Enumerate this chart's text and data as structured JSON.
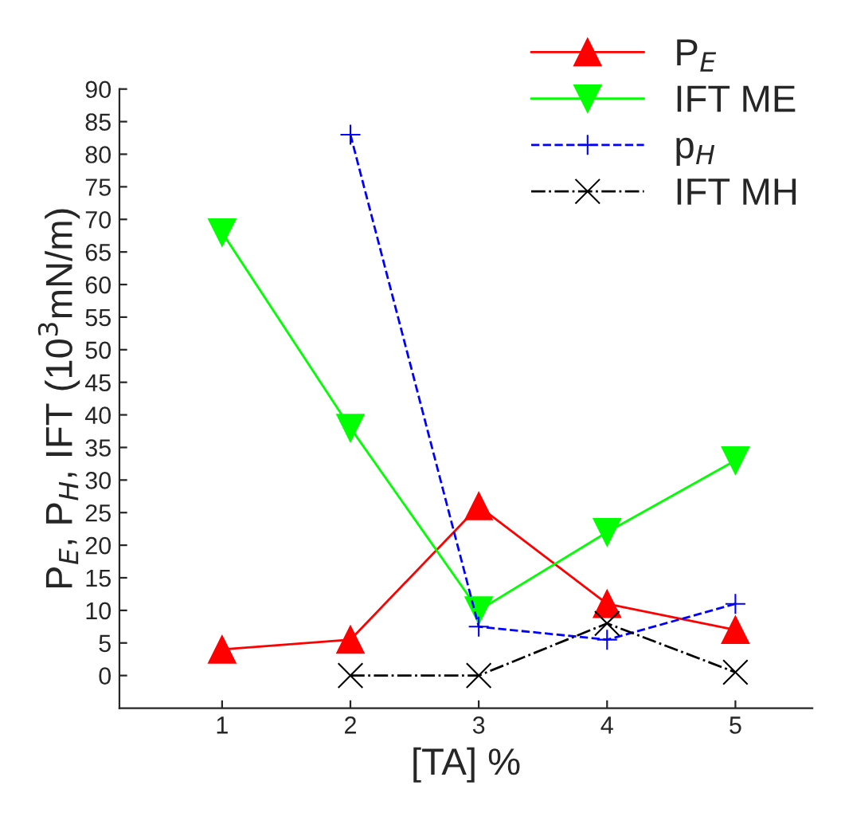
{
  "chart_data": {
    "type": "line",
    "xlabel": "[TA] %",
    "ylabel": "P$_{E}$, P$_{H}$, IFT (10$^{3}$mN/m)",
    "xlim": [
      0.2,
      5.6
    ],
    "xticks": [
      1,
      2,
      3,
      4,
      5
    ],
    "ylim": [
      -5,
      90
    ],
    "yticks": [
      0,
      5,
      10,
      15,
      20,
      25,
      30,
      35,
      40,
      45,
      50,
      55,
      60,
      65,
      70,
      75,
      80,
      85,
      90
    ],
    "legend": "top right",
    "grid": false,
    "series": [
      {
        "name": "P$_{E}$",
        "color": "#ff0000",
        "marker": "triangle",
        "line_style": "solid",
        "x": [
          1,
          2,
          3,
          4,
          5
        ],
        "values": [
          4,
          5.5,
          26,
          11,
          7
        ]
      },
      {
        "name": "IFT ME",
        "color": "#00ff00",
        "marker": "triangle_down",
        "line_style": "solid",
        "x": [
          1,
          2,
          3,
          4,
          5
        ],
        "values": [
          68,
          38,
          10,
          22,
          33
        ]
      },
      {
        "name": "p$_{H}$",
        "color": "#0000ff",
        "marker": "plus",
        "line_style": "dashed",
        "x": [
          2,
          3,
          4,
          5
        ],
        "values": [
          83,
          7.5,
          5.5,
          11
        ]
      },
      {
        "name": "IFT MH",
        "color": "#000000",
        "marker": "cross",
        "line_style": "dashdot",
        "x": [
          2,
          3,
          4,
          5
        ],
        "values": [
          0,
          0,
          8,
          0.5
        ]
      }
    ]
  }
}
